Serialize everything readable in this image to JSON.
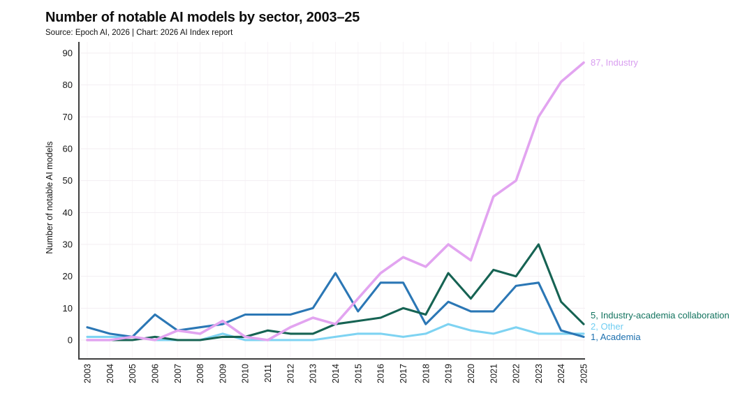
{
  "header": {
    "title": "Number of notable AI models by sector, 2003–25",
    "source": "Source: Epoch AI, 2026 | Chart: 2026 AI Index report"
  },
  "chart_data": {
    "type": "line",
    "title": "Number of notable AI models by sector, 2003–25",
    "source": "Source: Epoch AI, 2026 | Chart: 2026 AI Index report",
    "xlabel": "",
    "ylabel": "Number of notable AI models",
    "x": [
      2003,
      2004,
      2005,
      2006,
      2007,
      2008,
      2009,
      2010,
      2011,
      2012,
      2013,
      2014,
      2015,
      2016,
      2017,
      2018,
      2019,
      2020,
      2021,
      2022,
      2023,
      2024,
      2025
    ],
    "ylim": [
      0,
      90
    ],
    "yticks": [
      0,
      10,
      20,
      30,
      40,
      50,
      60,
      70,
      80,
      90
    ],
    "grid": true,
    "legend_position": "end-of-line-labels-right",
    "series": [
      {
        "name": "Industry",
        "end_label": "87, Industry",
        "color": "#e2a4f0",
        "label_color": "#d99ef0",
        "values": [
          0,
          0,
          1,
          0,
          3,
          2,
          6,
          1,
          0,
          4,
          7,
          5,
          13,
          21,
          26,
          23,
          30,
          25,
          45,
          50,
          70,
          81,
          87
        ]
      },
      {
        "name": "Industry-academia collaboration",
        "end_label": "5, Industry-academia collaboration",
        "color": "#166353",
        "label_color": "#12735e",
        "values": [
          0,
          0,
          0,
          1,
          0,
          0,
          1,
          1,
          3,
          2,
          2,
          5,
          6,
          7,
          10,
          8,
          21,
          13,
          22,
          20,
          30,
          12,
          5
        ]
      },
      {
        "name": "Other",
        "end_label": "2, Other",
        "color": "#7ed3f2",
        "label_color": "#6fcdf2",
        "values": [
          1,
          1,
          1,
          0,
          0,
          0,
          2,
          0,
          0,
          0,
          0,
          1,
          2,
          2,
          1,
          2,
          5,
          3,
          2,
          4,
          2,
          2,
          2
        ]
      },
      {
        "name": "Academia",
        "end_label": "1, Academia",
        "color": "#2b77b5",
        "label_color": "#1b6fae",
        "values": [
          4,
          2,
          1,
          8,
          3,
          4,
          5,
          8,
          8,
          8,
          10,
          21,
          9,
          18,
          18,
          5,
          12,
          9,
          9,
          17,
          18,
          3,
          1
        ]
      }
    ]
  }
}
